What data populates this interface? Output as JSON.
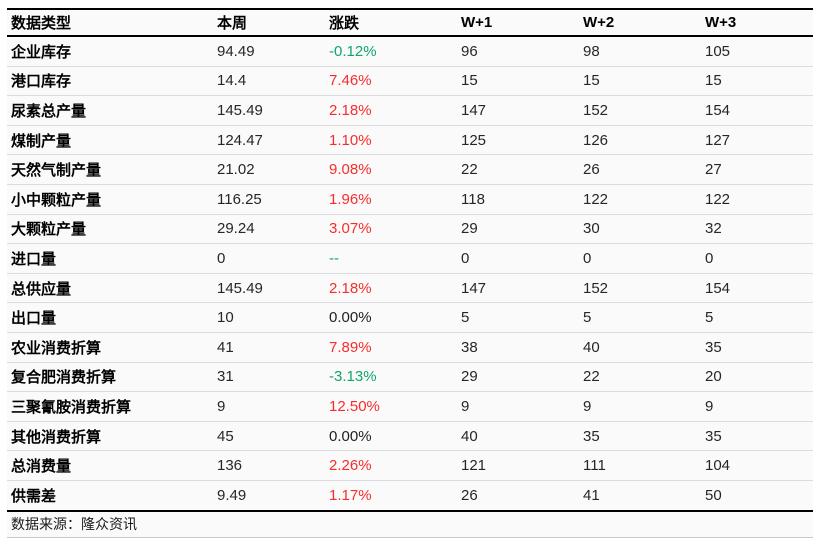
{
  "colors": {
    "red": "#f92c2c",
    "green": "#10a56a",
    "black": "#1f1f1f"
  },
  "chart_data": {
    "type": "table",
    "columns": [
      "数据类型",
      "本周",
      "涨跌",
      "W+1",
      "W+2",
      "W+3"
    ],
    "rows": [
      {
        "label": "企业库存",
        "this_week": "94.49",
        "change": "-0.12%",
        "change_color": "green",
        "w1": "96",
        "w2": "98",
        "w3": "105"
      },
      {
        "label": "港口库存",
        "this_week": "14.4",
        "change": "7.46%",
        "change_color": "red",
        "w1": "15",
        "w2": "15",
        "w3": "15"
      },
      {
        "label": "尿素总产量",
        "this_week": "145.49",
        "change": "2.18%",
        "change_color": "red",
        "w1": "147",
        "w2": "152",
        "w3": "154"
      },
      {
        "label": "煤制产量",
        "this_week": "124.47",
        "change": "1.10%",
        "change_color": "red",
        "w1": "125",
        "w2": "126",
        "w3": "127"
      },
      {
        "label": "天然气制产量",
        "this_week": "21.02",
        "change": "9.08%",
        "change_color": "red",
        "w1": "22",
        "w2": "26",
        "w3": "27"
      },
      {
        "label": "小中颗粒产量",
        "this_week": "116.25",
        "change": "1.96%",
        "change_color": "red",
        "w1": "118",
        "w2": "122",
        "w3": "122"
      },
      {
        "label": "大颗粒产量",
        "this_week": "29.24",
        "change": "3.07%",
        "change_color": "red",
        "w1": "29",
        "w2": "30",
        "w3": "32"
      },
      {
        "label": "进口量",
        "this_week": "0",
        "change": "--",
        "change_color": "green",
        "w1": "0",
        "w2": "0",
        "w3": "0"
      },
      {
        "label": "总供应量",
        "this_week": "145.49",
        "change": "2.18%",
        "change_color": "red",
        "w1": "147",
        "w2": "152",
        "w3": "154"
      },
      {
        "label": "出口量",
        "this_week": "10",
        "change": "0.00%",
        "change_color": "black",
        "w1": "5",
        "w2": "5",
        "w3": "5"
      },
      {
        "label": "农业消费折算",
        "this_week": "41",
        "change": "7.89%",
        "change_color": "red",
        "w1": "38",
        "w2": "40",
        "w3": "35"
      },
      {
        "label": "复合肥消费折算",
        "this_week": "31",
        "change": "-3.13%",
        "change_color": "green",
        "w1": "29",
        "w2": "22",
        "w3": "20"
      },
      {
        "label": "三聚氰胺消费折算",
        "this_week": "9",
        "change": "12.50%",
        "change_color": "red",
        "w1": "9",
        "w2": "9",
        "w3": "9"
      },
      {
        "label": "其他消费折算",
        "this_week": "45",
        "change": "0.00%",
        "change_color": "black",
        "w1": "40",
        "w2": "35",
        "w3": "35"
      },
      {
        "label": "总消费量",
        "this_week": "136",
        "change": "2.26%",
        "change_color": "red",
        "w1": "121",
        "w2": "111",
        "w3": "104"
      },
      {
        "label": "供需差",
        "this_week": "9.49",
        "change": "1.17%",
        "change_color": "red",
        "w1": "26",
        "w2": "41",
        "w3": "50"
      }
    ],
    "source": "数据来源：隆众资讯"
  }
}
